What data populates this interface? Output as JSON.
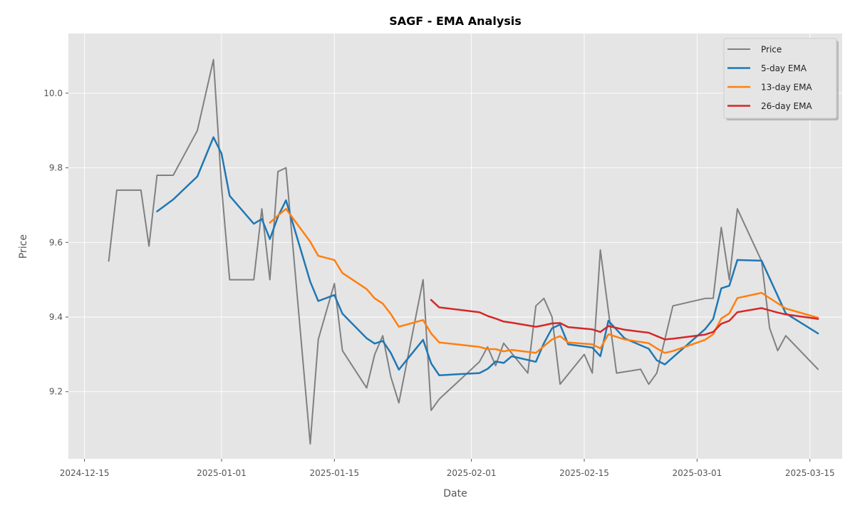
{
  "chart_data": {
    "type": "line",
    "title": "SAGF - EMA Analysis",
    "xlabel": "Date",
    "ylabel": "Price",
    "x_axis_type": "date",
    "xlim": [
      "2024-12-13",
      "2025-03-19"
    ],
    "ylim": [
      9.02,
      10.16
    ],
    "xticks": [
      "2024-12-15",
      "2025-01-01",
      "2025-01-15",
      "2025-02-01",
      "2025-02-15",
      "2025-03-01",
      "2025-03-15"
    ],
    "yticks": [
      9.2,
      9.4,
      9.6,
      9.8,
      10.0
    ],
    "ytick_labels": [
      "9.2",
      "9.4",
      "9.6",
      "9.8",
      "10.0"
    ],
    "grid": true,
    "legend_position": "top-right",
    "style": "ggplot",
    "series": [
      {
        "name": "Price",
        "color": "#808080",
        "points": [
          [
            "2024-12-18",
            9.55
          ],
          [
            "2024-12-19",
            9.74
          ],
          [
            "2024-12-22",
            9.74
          ],
          [
            "2024-12-23",
            9.59
          ],
          [
            "2024-12-24",
            9.78
          ],
          [
            "2024-12-26",
            9.78
          ],
          [
            "2024-12-29",
            9.9
          ],
          [
            "2024-12-31",
            10.09
          ],
          [
            "2025-01-01",
            9.75
          ],
          [
            "2025-01-02",
            9.5
          ],
          [
            "2025-01-05",
            9.5
          ],
          [
            "2025-01-06",
            9.69
          ],
          [
            "2025-01-07",
            9.5
          ],
          [
            "2025-01-08",
            9.79
          ],
          [
            "2025-01-09",
            9.8
          ],
          [
            "2025-01-12",
            9.06
          ],
          [
            "2025-01-13",
            9.34
          ],
          [
            "2025-01-15",
            9.49
          ],
          [
            "2025-01-16",
            9.31
          ],
          [
            "2025-01-19",
            9.21
          ],
          [
            "2025-01-20",
            9.3
          ],
          [
            "2025-01-21",
            9.35
          ],
          [
            "2025-01-22",
            9.24
          ],
          [
            "2025-01-23",
            9.17
          ],
          [
            "2025-01-26",
            9.5
          ],
          [
            "2025-01-27",
            9.15
          ],
          [
            "2025-01-28",
            9.18
          ],
          [
            "2025-02-02",
            9.28
          ],
          [
            "2025-02-03",
            9.32
          ],
          [
            "2025-02-04",
            9.27
          ],
          [
            "2025-02-05",
            9.33
          ],
          [
            "2025-02-08",
            9.25
          ],
          [
            "2025-02-09",
            9.43
          ],
          [
            "2025-02-10",
            9.45
          ],
          [
            "2025-02-11",
            9.4
          ],
          [
            "2025-02-12",
            9.22
          ],
          [
            "2025-02-15",
            9.3
          ],
          [
            "2025-02-16",
            9.25
          ],
          [
            "2025-02-17",
            9.58
          ],
          [
            "2025-02-19",
            9.25
          ],
          [
            "2025-02-22",
            9.26
          ],
          [
            "2025-02-23",
            9.22
          ],
          [
            "2025-02-24",
            9.25
          ],
          [
            "2025-02-26",
            9.43
          ],
          [
            "2025-03-02",
            9.45
          ],
          [
            "2025-03-03",
            9.45
          ],
          [
            "2025-03-04",
            9.64
          ],
          [
            "2025-03-05",
            9.5
          ],
          [
            "2025-03-06",
            9.69
          ],
          [
            "2025-03-09",
            9.55
          ],
          [
            "2025-03-10",
            9.37
          ],
          [
            "2025-03-11",
            9.31
          ],
          [
            "2025-03-12",
            9.35
          ],
          [
            "2025-03-16",
            9.26
          ]
        ]
      },
      {
        "name": "5-day EMA",
        "color": "#1f77b4",
        "points": [
          [
            "2024-12-24",
            9.683
          ],
          [
            "2024-12-26",
            9.715
          ],
          [
            "2024-12-29",
            9.777
          ],
          [
            "2024-12-31",
            9.882
          ],
          [
            "2025-01-01",
            9.838
          ],
          [
            "2025-01-02",
            9.725
          ],
          [
            "2025-01-05",
            9.65
          ],
          [
            "2025-01-06",
            9.663
          ],
          [
            "2025-01-07",
            9.609
          ],
          [
            "2025-01-08",
            9.669
          ],
          [
            "2025-01-09",
            9.713
          ],
          [
            "2025-01-12",
            9.495
          ],
          [
            "2025-01-13",
            9.443
          ],
          [
            "2025-01-15",
            9.459
          ],
          [
            "2025-01-16",
            9.409
          ],
          [
            "2025-01-19",
            9.343
          ],
          [
            "2025-01-20",
            9.329
          ],
          [
            "2025-01-21",
            9.336
          ],
          [
            "2025-01-22",
            9.304
          ],
          [
            "2025-01-23",
            9.259
          ],
          [
            "2025-01-26",
            9.339
          ],
          [
            "2025-01-27",
            9.276
          ],
          [
            "2025-01-28",
            9.244
          ],
          [
            "2025-02-02",
            9.25
          ],
          [
            "2025-02-03",
            9.261
          ],
          [
            "2025-02-04",
            9.281
          ],
          [
            "2025-02-05",
            9.277
          ],
          [
            "2025-02-06",
            9.295
          ],
          [
            "2025-02-09",
            9.28
          ],
          [
            "2025-02-10",
            9.33
          ],
          [
            "2025-02-11",
            9.37
          ],
          [
            "2025-02-12",
            9.38
          ],
          [
            "2025-02-13",
            9.327
          ],
          [
            "2025-02-16",
            9.318
          ],
          [
            "2025-02-17",
            9.295
          ],
          [
            "2025-02-18",
            9.39
          ],
          [
            "2025-02-20",
            9.343
          ],
          [
            "2025-02-23",
            9.315
          ],
          [
            "2025-02-24",
            9.284
          ],
          [
            "2025-02-25",
            9.273
          ],
          [
            "2025-02-26",
            9.292
          ],
          [
            "2025-03-02",
            9.368
          ],
          [
            "2025-03-03",
            9.395
          ],
          [
            "2025-03-04",
            9.477
          ],
          [
            "2025-03-05",
            9.484
          ],
          [
            "2025-03-06",
            9.553
          ],
          [
            "2025-03-09",
            9.551
          ],
          [
            "2025-03-12",
            9.41
          ],
          [
            "2025-03-16",
            9.356
          ]
        ]
      },
      {
        "name": "13-day EMA",
        "color": "#ff7f0e",
        "points": [
          [
            "2025-01-07",
            9.653
          ],
          [
            "2025-01-08",
            9.672
          ],
          [
            "2025-01-09",
            9.69
          ],
          [
            "2025-01-12",
            9.602
          ],
          [
            "2025-01-13",
            9.564
          ],
          [
            "2025-01-15",
            9.553
          ],
          [
            "2025-01-16",
            9.518
          ],
          [
            "2025-01-19",
            9.475
          ],
          [
            "2025-01-20",
            9.45
          ],
          [
            "2025-01-21",
            9.436
          ],
          [
            "2025-01-22",
            9.408
          ],
          [
            "2025-01-23",
            9.374
          ],
          [
            "2025-01-26",
            9.392
          ],
          [
            "2025-01-27",
            9.356
          ],
          [
            "2025-01-28",
            9.332
          ],
          [
            "2025-02-02",
            9.32
          ],
          [
            "2025-02-03",
            9.314
          ],
          [
            "2025-02-04",
            9.314
          ],
          [
            "2025-02-05",
            9.308
          ],
          [
            "2025-02-06",
            9.312
          ],
          [
            "2025-02-09",
            9.304
          ],
          [
            "2025-02-10",
            9.322
          ],
          [
            "2025-02-11",
            9.34
          ],
          [
            "2025-02-12",
            9.349
          ],
          [
            "2025-02-13",
            9.332
          ],
          [
            "2025-02-16",
            9.327
          ],
          [
            "2025-02-17",
            9.316
          ],
          [
            "2025-02-18",
            9.354
          ],
          [
            "2025-02-20",
            9.34
          ],
          [
            "2025-02-23",
            9.33
          ],
          [
            "2025-02-24",
            9.316
          ],
          [
            "2025-02-25",
            9.304
          ],
          [
            "2025-02-26",
            9.309
          ],
          [
            "2025-03-02",
            9.339
          ],
          [
            "2025-03-03",
            9.354
          ],
          [
            "2025-03-04",
            9.396
          ],
          [
            "2025-03-05",
            9.41
          ],
          [
            "2025-03-06",
            9.451
          ],
          [
            "2025-03-09",
            9.465
          ],
          [
            "2025-03-12",
            9.423
          ],
          [
            "2025-03-16",
            9.398
          ]
        ]
      },
      {
        "name": "26-day EMA",
        "color": "#d62728",
        "points": [
          [
            "2025-01-27",
            9.446
          ],
          [
            "2025-01-28",
            9.426
          ],
          [
            "2025-02-02",
            9.413
          ],
          [
            "2025-02-03",
            9.403
          ],
          [
            "2025-02-04",
            9.396
          ],
          [
            "2025-02-05",
            9.388
          ],
          [
            "2025-02-06",
            9.385
          ],
          [
            "2025-02-09",
            9.374
          ],
          [
            "2025-02-10",
            9.378
          ],
          [
            "2025-02-11",
            9.383
          ],
          [
            "2025-02-12",
            9.384
          ],
          [
            "2025-02-13",
            9.373
          ],
          [
            "2025-02-16",
            9.367
          ],
          [
            "2025-02-17",
            9.36
          ],
          [
            "2025-02-18",
            9.376
          ],
          [
            "2025-02-20",
            9.366
          ],
          [
            "2025-02-23",
            9.358
          ],
          [
            "2025-02-24",
            9.349
          ],
          [
            "2025-02-25",
            9.34
          ],
          [
            "2025-02-26",
            9.342
          ],
          [
            "2025-03-02",
            9.353
          ],
          [
            "2025-03-03",
            9.36
          ],
          [
            "2025-03-04",
            9.382
          ],
          [
            "2025-03-05",
            9.39
          ],
          [
            "2025-03-06",
            9.413
          ],
          [
            "2025-03-09",
            9.424
          ],
          [
            "2025-03-11",
            9.412
          ],
          [
            "2025-03-12",
            9.407
          ],
          [
            "2025-03-16",
            9.395
          ]
        ]
      }
    ]
  }
}
